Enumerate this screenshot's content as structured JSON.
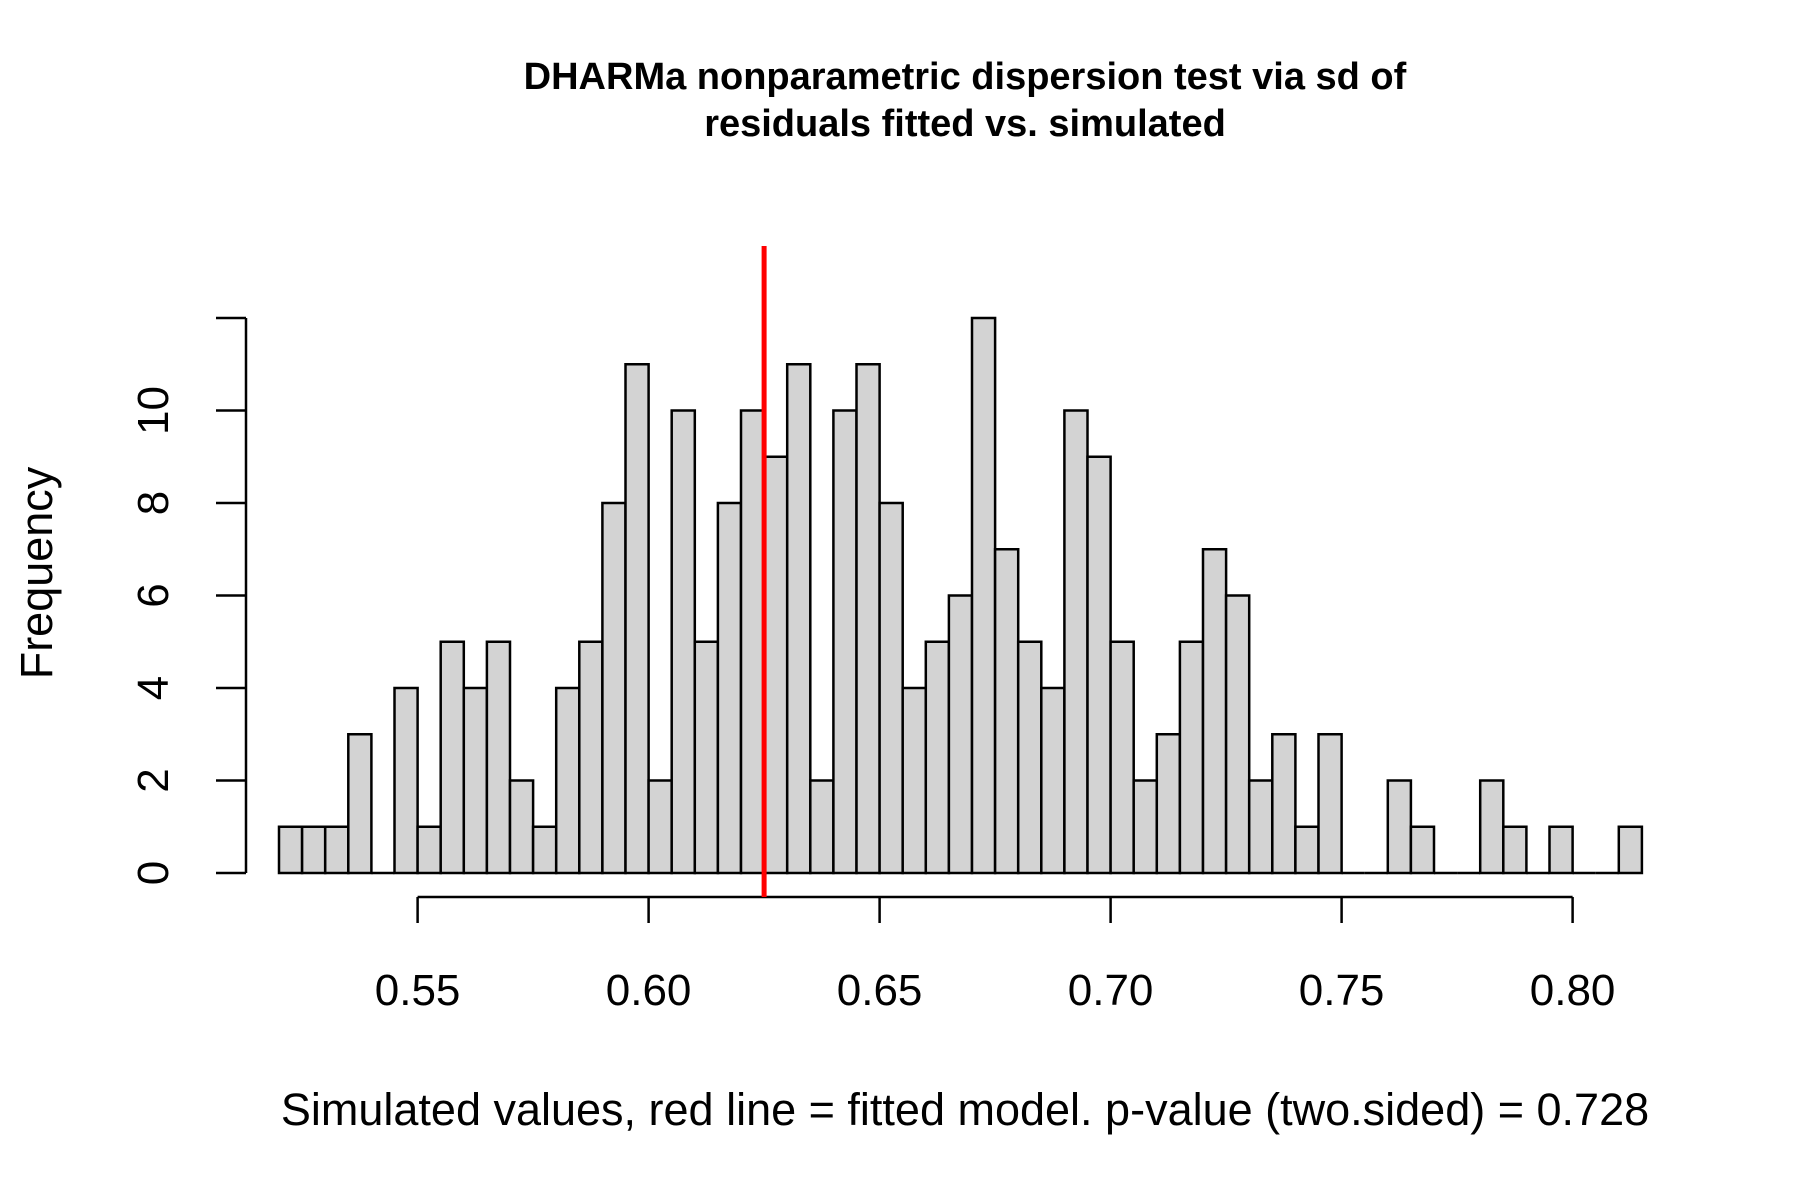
{
  "chart_data": {
    "type": "bar",
    "title_line1": "DHARMa nonparametric dispersion test via sd of",
    "title_line2": "residuals fitted vs. simulated",
    "xlabel": "Simulated values, red line = fitted model. p-value (two.sided) = 0.728",
    "ylabel": "Frequency",
    "bin_start": 0.52,
    "bin_width": 0.005,
    "counts": [
      1,
      1,
      1,
      3,
      0,
      4,
      1,
      5,
      4,
      5,
      2,
      1,
      4,
      5,
      8,
      11,
      2,
      10,
      5,
      8,
      10,
      9,
      11,
      2,
      10,
      11,
      8,
      4,
      5,
      6,
      12,
      7,
      5,
      4,
      10,
      9,
      5,
      2,
      3,
      5,
      7,
      6,
      2,
      3,
      1,
      3,
      0,
      0,
      2,
      1,
      0,
      0,
      2,
      1,
      0,
      1,
      0,
      0,
      1
    ],
    "xlim": [
      0.52,
      0.815
    ],
    "ylim": [
      0,
      12.5
    ],
    "xticks": [
      0.55,
      0.6,
      0.65,
      0.7,
      0.75,
      0.8
    ],
    "xtick_labels": [
      "0.55",
      "0.60",
      "0.65",
      "0.70",
      "0.75",
      "0.80"
    ],
    "yticks": [
      0,
      2,
      4,
      6,
      8,
      10,
      12
    ],
    "ytick_labels": [
      "0",
      "2",
      "4",
      "6",
      "8",
      "10",
      ""
    ],
    "observed_value": 0.625,
    "observed_line_color": "#ff0000",
    "bar_color": "#d3d3d3"
  }
}
